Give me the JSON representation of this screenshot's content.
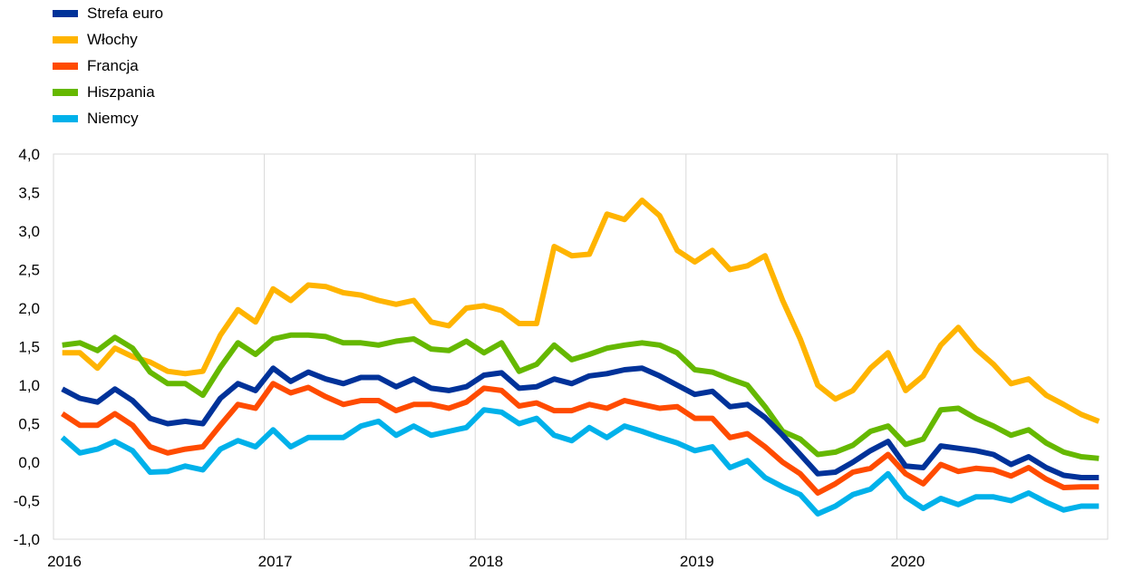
{
  "chart_data": {
    "type": "line",
    "title": "",
    "xlabel": "",
    "ylabel": "",
    "ylim": [
      -1.0,
      4.0
    ],
    "yticks": [
      "4,0",
      "3,5",
      "3,0",
      "2,5",
      "2,0",
      "1,5",
      "1,0",
      "0,5",
      "0,0",
      "-0,5",
      "-1,0"
    ],
    "ytick_values": [
      4.0,
      3.5,
      3.0,
      2.5,
      2.0,
      1.5,
      1.0,
      0.5,
      0.0,
      -0.5,
      -1.0
    ],
    "xticks": [
      "2016",
      "2017",
      "2018",
      "2019",
      "2020"
    ],
    "x_start": "2016-01",
    "x_end": "2020-12",
    "grid": "vertical gridlines at years",
    "legend_position": "top-left",
    "series": [
      {
        "name": "Strefa euro",
        "color": "#003299",
        "values": [
          0.95,
          0.83,
          0.78,
          0.95,
          0.8,
          0.57,
          0.5,
          0.53,
          0.5,
          0.83,
          1.02,
          0.93,
          1.22,
          1.05,
          1.17,
          1.08,
          1.02,
          1.1,
          1.1,
          0.98,
          1.08,
          0.96,
          0.93,
          0.98,
          1.13,
          1.16,
          0.96,
          0.98,
          1.08,
          1.02,
          1.12,
          1.15,
          1.2,
          1.22,
          1.12,
          1.0,
          0.88,
          0.92,
          0.72,
          0.75,
          0.58,
          0.35,
          0.1,
          -0.15,
          -0.13,
          0.0,
          0.15,
          0.27,
          -0.05,
          -0.07,
          0.21,
          0.18,
          0.15,
          0.1,
          -0.03,
          0.07,
          -0.07,
          -0.17,
          -0.2,
          -0.2
        ]
      },
      {
        "name": "Włochy",
        "color": "#FFB400",
        "values": [
          1.42,
          1.42,
          1.22,
          1.48,
          1.37,
          1.3,
          1.18,
          1.15,
          1.18,
          1.65,
          1.98,
          1.82,
          2.25,
          2.1,
          2.3,
          2.28,
          2.2,
          2.17,
          2.1,
          2.05,
          2.1,
          1.82,
          1.77,
          2.0,
          2.03,
          1.97,
          1.8,
          1.8,
          2.8,
          2.68,
          2.7,
          3.22,
          3.15,
          3.4,
          3.2,
          2.75,
          2.6,
          2.75,
          2.5,
          2.55,
          2.68,
          2.1,
          1.6,
          1.0,
          0.82,
          0.93,
          1.22,
          1.42,
          0.93,
          1.12,
          1.52,
          1.75,
          1.47,
          1.27,
          1.02,
          1.08,
          0.87,
          0.75,
          0.62,
          0.53
        ]
      },
      {
        "name": "Francja",
        "color": "#FF4B00",
        "values": [
          0.63,
          0.48,
          0.48,
          0.63,
          0.48,
          0.2,
          0.12,
          0.17,
          0.2,
          0.48,
          0.75,
          0.7,
          1.02,
          0.9,
          0.97,
          0.85,
          0.75,
          0.8,
          0.8,
          0.67,
          0.75,
          0.75,
          0.7,
          0.78,
          0.96,
          0.93,
          0.73,
          0.77,
          0.67,
          0.67,
          0.75,
          0.7,
          0.8,
          0.75,
          0.7,
          0.72,
          0.57,
          0.57,
          0.32,
          0.37,
          0.2,
          0.0,
          -0.15,
          -0.4,
          -0.28,
          -0.13,
          -0.08,
          0.1,
          -0.15,
          -0.28,
          -0.03,
          -0.12,
          -0.08,
          -0.1,
          -0.18,
          -0.07,
          -0.22,
          -0.33,
          -0.32,
          -0.32
        ]
      },
      {
        "name": "Hiszpania",
        "color": "#65B800",
        "values": [
          1.52,
          1.55,
          1.45,
          1.62,
          1.48,
          1.17,
          1.02,
          1.02,
          0.87,
          1.23,
          1.55,
          1.4,
          1.6,
          1.65,
          1.65,
          1.63,
          1.55,
          1.55,
          1.52,
          1.57,
          1.6,
          1.47,
          1.45,
          1.57,
          1.42,
          1.55,
          1.18,
          1.27,
          1.52,
          1.33,
          1.4,
          1.48,
          1.52,
          1.55,
          1.52,
          1.42,
          1.2,
          1.17,
          1.08,
          1.0,
          0.72,
          0.4,
          0.3,
          0.1,
          0.13,
          0.22,
          0.4,
          0.47,
          0.23,
          0.3,
          0.68,
          0.7,
          0.57,
          0.47,
          0.35,
          0.42,
          0.25,
          0.13,
          0.07,
          0.05
        ]
      },
      {
        "name": "Niemcy",
        "color": "#00B1EA",
        "values": [
          0.32,
          0.12,
          0.17,
          0.27,
          0.15,
          -0.13,
          -0.12,
          -0.05,
          -0.1,
          0.17,
          0.28,
          0.2,
          0.42,
          0.2,
          0.32,
          0.32,
          0.32,
          0.47,
          0.53,
          0.35,
          0.47,
          0.35,
          0.4,
          0.45,
          0.68,
          0.65,
          0.5,
          0.57,
          0.35,
          0.28,
          0.45,
          0.32,
          0.47,
          0.4,
          0.32,
          0.25,
          0.15,
          0.2,
          -0.07,
          0.02,
          -0.2,
          -0.32,
          -0.42,
          -0.67,
          -0.57,
          -0.42,
          -0.35,
          -0.15,
          -0.45,
          -0.6,
          -0.47,
          -0.55,
          -0.45,
          -0.45,
          -0.5,
          -0.4,
          -0.52,
          -0.62,
          -0.57,
          -0.57
        ]
      }
    ]
  }
}
